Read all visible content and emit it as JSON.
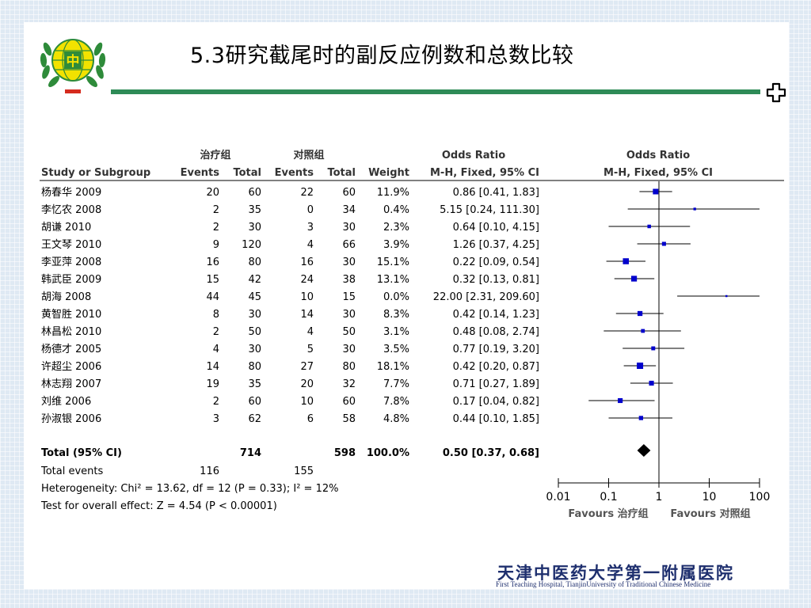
{
  "slide": {
    "title": "5.3研究截尾时的副反应例数和总数比较",
    "logo_text": "中",
    "hospital_name": "天津中医药大学第一附属医院",
    "hospital_name_en": "First Teaching Hospital, TianjinUniversity of Traditional Chinese Medicine",
    "colors": {
      "title_bar": "#2e8b57",
      "logo_green": "#2e8b3a",
      "logo_yellow": "#f2e200",
      "logo_red": "#d52b1e",
      "hospital_blue": "#1e2f6e"
    }
  },
  "forest": {
    "group_headers": {
      "treatment": "治疗组",
      "control": "对照组",
      "odds_ratio": "Odds Ratio",
      "odds_ratio_plot": "Odds Ratio"
    },
    "column_headers": {
      "study": "Study or Subgroup",
      "events": "Events",
      "total": "Total",
      "weight": "Weight",
      "method": "M-H, Fixed, 95% CI",
      "method_plot": "M-H, Fixed, 95% CI"
    },
    "total": {
      "label": "Total (95% CI)",
      "treat_total": "714",
      "ctrl_total": "598",
      "weight": "100.0%",
      "ci_text": "0.50 [0.37, 0.68]"
    },
    "total_events": {
      "label": "Total events",
      "treat": "116",
      "ctrl": "155"
    },
    "heterogeneity": "Heterogeneity: Chi² = 13.62, df = 12 (P = 0.33); I² = 12%",
    "overall_effect": "Test for overall effect: Z = 4.54 (P < 0.00001)",
    "favours_left": "Favours 治疗组",
    "favours_right": "Favours 对照组",
    "colors": {
      "square": "#0000cc",
      "diamond": "#000000",
      "text": "#000000",
      "header": "#333333"
    }
  },
  "chart_data": {
    "type": "forest",
    "x_scale": "log",
    "x_ticks": [
      "0.01",
      "0.1",
      "1",
      "10",
      "100"
    ],
    "x_range": [
      0.01,
      100
    ],
    "reference_line": 1,
    "studies": [
      {
        "name": "杨春华 2009",
        "treat_events": "20",
        "treat_total": "60",
        "ctrl_events": "22",
        "ctrl_total": "60",
        "weight": "11.9%",
        "ci_text": "0.86 [0.41, 1.83]",
        "or": 0.86,
        "lo": 0.41,
        "hi": 1.83
      },
      {
        "name": "李忆农 2008",
        "treat_events": "2",
        "treat_total": "35",
        "ctrl_events": "0",
        "ctrl_total": "34",
        "weight": "0.4%",
        "ci_text": "5.15 [0.24, 111.30]",
        "or": 5.15,
        "lo": 0.24,
        "hi": 111.3
      },
      {
        "name": "胡谦 2010",
        "treat_events": "2",
        "treat_total": "30",
        "ctrl_events": "3",
        "ctrl_total": "30",
        "weight": "2.3%",
        "ci_text": "0.64 [0.10, 4.15]",
        "or": 0.64,
        "lo": 0.1,
        "hi": 4.15
      },
      {
        "name": "王文琴 2010",
        "treat_events": "9",
        "treat_total": "120",
        "ctrl_events": "4",
        "ctrl_total": "66",
        "weight": "3.9%",
        "ci_text": "1.26 [0.37, 4.25]",
        "or": 1.26,
        "lo": 0.37,
        "hi": 4.25
      },
      {
        "name": "李亚萍 2008",
        "treat_events": "16",
        "treat_total": "80",
        "ctrl_events": "16",
        "ctrl_total": "30",
        "weight": "15.1%",
        "ci_text": "0.22 [0.09, 0.54]",
        "or": 0.22,
        "lo": 0.09,
        "hi": 0.54
      },
      {
        "name": "韩武臣 2009",
        "treat_events": "15",
        "treat_total": "42",
        "ctrl_events": "24",
        "ctrl_total": "38",
        "weight": "13.1%",
        "ci_text": "0.32 [0.13, 0.81]",
        "or": 0.32,
        "lo": 0.13,
        "hi": 0.81
      },
      {
        "name": "胡海 2008",
        "treat_events": "44",
        "treat_total": "45",
        "ctrl_events": "10",
        "ctrl_total": "15",
        "weight": "0.0%",
        "ci_text": "22.00 [2.31, 209.60]",
        "or": 22.0,
        "lo": 2.31,
        "hi": 209.6
      },
      {
        "name": "黄智胜 2010",
        "treat_events": "8",
        "treat_total": "30",
        "ctrl_events": "14",
        "ctrl_total": "30",
        "weight": "8.3%",
        "ci_text": "0.42 [0.14, 1.23]",
        "or": 0.42,
        "lo": 0.14,
        "hi": 1.23
      },
      {
        "name": "林昌松 2010",
        "treat_events": "2",
        "treat_total": "50",
        "ctrl_events": "4",
        "ctrl_total": "50",
        "weight": "3.1%",
        "ci_text": "0.48 [0.08, 2.74]",
        "or": 0.48,
        "lo": 0.08,
        "hi": 2.74
      },
      {
        "name": "杨德才 2005",
        "treat_events": "4",
        "treat_total": "30",
        "ctrl_events": "5",
        "ctrl_total": "30",
        "weight": "3.5%",
        "ci_text": "0.77 [0.19, 3.20]",
        "or": 0.77,
        "lo": 0.19,
        "hi": 3.2
      },
      {
        "name": "许超尘 2006",
        "treat_events": "14",
        "treat_total": "80",
        "ctrl_events": "27",
        "ctrl_total": "80",
        "weight": "18.1%",
        "ci_text": "0.42 [0.20, 0.87]",
        "or": 0.42,
        "lo": 0.2,
        "hi": 0.87
      },
      {
        "name": "林志翔 2007",
        "treat_events": "19",
        "treat_total": "35",
        "ctrl_events": "20",
        "ctrl_total": "32",
        "weight": "7.7%",
        "ci_text": "0.71 [0.27, 1.89]",
        "or": 0.71,
        "lo": 0.27,
        "hi": 1.89
      },
      {
        "name": "刘维 2006",
        "treat_events": "2",
        "treat_total": "60",
        "ctrl_events": "10",
        "ctrl_total": "60",
        "weight": "7.8%",
        "ci_text": "0.17 [0.04, 0.82]",
        "or": 0.17,
        "lo": 0.04,
        "hi": 0.82
      },
      {
        "name": "孙淑银 2006",
        "treat_events": "3",
        "treat_total": "62",
        "ctrl_events": "6",
        "ctrl_total": "58",
        "weight": "4.8%",
        "ci_text": "0.44 [0.10, 1.85]",
        "or": 0.44,
        "lo": 0.1,
        "hi": 1.85
      }
    ],
    "pooled": {
      "or": 0.5,
      "lo": 0.37,
      "hi": 0.68
    }
  }
}
